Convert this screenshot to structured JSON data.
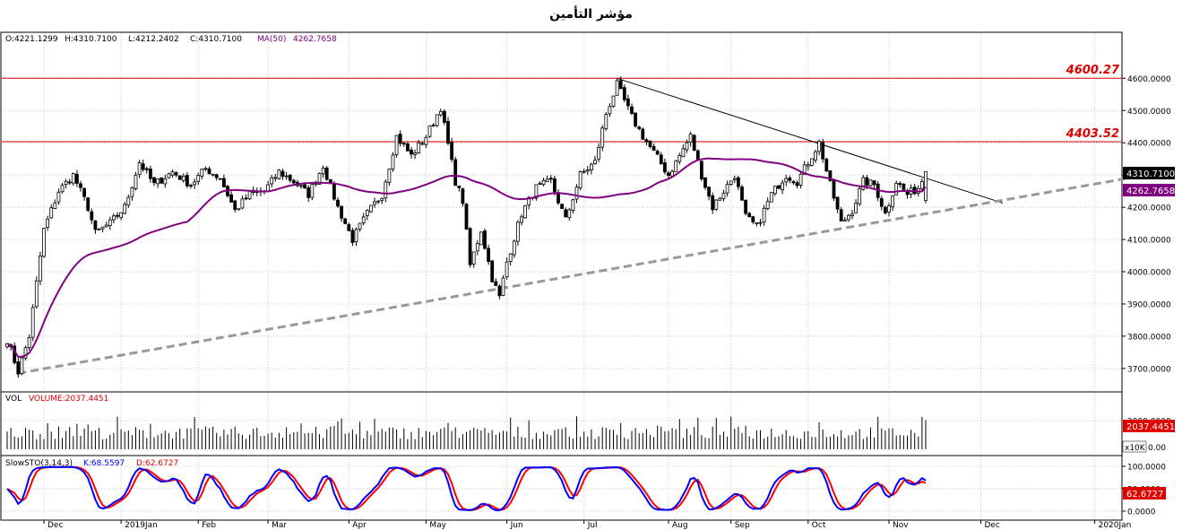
{
  "title": "مؤشر التأمين",
  "ohlc_header": {
    "open": "O:4221.1299",
    "high": "H:4310.7100",
    "low": "L:4212.2402",
    "close": "C:4310.7100",
    "ma_label": "MA(50)",
    "ma_value": "4262.7658"
  },
  "volume_header": {
    "label": "VOL",
    "value": "VOLUME:2037.4451"
  },
  "stoch_header": {
    "label": "SlowSTO(3,14,3)",
    "k": "K:68.5597",
    "d": "D:62.6727"
  },
  "colors": {
    "up": "#000000",
    "down": "#000000",
    "ma": "#800080",
    "resistance": "#e00000",
    "trend_down": "#000000",
    "trend_up": "#999999",
    "stoch_k": "#0000ff",
    "stoch_d": "#ff0000",
    "grid": "#c8c8c8"
  },
  "chart_data": {
    "type": "candlestick",
    "price_axis": {
      "ticks": [
        3700,
        3800,
        3900,
        4000,
        4100,
        4200,
        4300,
        4400,
        4500,
        4600
      ],
      "tick_labels": [
        "3700.0000",
        "3800.0000",
        "3900.0000",
        "4000.0000",
        "4100.0000",
        "4200.0000",
        "4300.0000",
        "4400.0000",
        "4500.0000",
        "4600.0000"
      ],
      "range": [
        3630,
        4740
      ]
    },
    "volume_axis": {
      "ticks": [
        2000
      ],
      "tick_labels": [
        "2000.0000"
      ],
      "unit_label": "x10K",
      "zero_label": "0.00",
      "range": [
        0,
        3000
      ]
    },
    "stoch_axis": {
      "ticks": [
        0,
        50,
        100
      ],
      "tick_labels": [
        "0.0000",
        "50.0000",
        "100.0000"
      ],
      "range": [
        -10,
        110
      ]
    },
    "time_axis": {
      "labels": [
        {
          "label": "Dec",
          "index": 10
        },
        {
          "label": "2019Jan",
          "index": 31
        },
        {
          "label": "Feb",
          "index": 52
        },
        {
          "label": "Mar",
          "index": 71
        },
        {
          "label": "Apr",
          "index": 93
        },
        {
          "label": "May",
          "index": 114
        },
        {
          "label": "Jun",
          "index": 136
        },
        {
          "label": "Jul",
          "index": 157
        },
        {
          "label": "Aug",
          "index": 180
        },
        {
          "label": "Sep",
          "index": 197
        },
        {
          "label": "Oct",
          "index": 218
        },
        {
          "label": "Nov",
          "index": 240
        },
        {
          "label": "Dec",
          "index": 265
        },
        {
          "label": "2020Jan",
          "index": 296
        }
      ],
      "total_slots": 305
    },
    "resistance_levels": [
      {
        "value": 4600.27,
        "label": "4600.27"
      },
      {
        "value": 4403.52,
        "label": "4403.52"
      }
    ],
    "trendlines": [
      {
        "name": "descending",
        "from": {
          "index": 166,
          "value": 4600
        },
        "to": {
          "index": 271,
          "value": 4213
        }
      },
      {
        "name": "ascending",
        "from": {
          "index": 3,
          "value": 3685
        },
        "to": {
          "index": 305,
          "value": 4290
        }
      }
    ],
    "price_anchors": [
      [
        0,
        3790
      ],
      [
        3,
        3690
      ],
      [
        6,
        3800
      ],
      [
        10,
        4130
      ],
      [
        14,
        4250
      ],
      [
        18,
        4300
      ],
      [
        22,
        4200
      ],
      [
        24,
        4120
      ],
      [
        28,
        4150
      ],
      [
        32,
        4200
      ],
      [
        36,
        4340
      ],
      [
        40,
        4270
      ],
      [
        45,
        4310
      ],
      [
        50,
        4270
      ],
      [
        54,
        4320
      ],
      [
        58,
        4290
      ],
      [
        62,
        4190
      ],
      [
        66,
        4240
      ],
      [
        70,
        4250
      ],
      [
        74,
        4310
      ],
      [
        78,
        4280
      ],
      [
        82,
        4240
      ],
      [
        86,
        4330
      ],
      [
        90,
        4200
      ],
      [
        94,
        4100
      ],
      [
        98,
        4180
      ],
      [
        102,
        4240
      ],
      [
        106,
        4420
      ],
      [
        110,
        4360
      ],
      [
        114,
        4420
      ],
      [
        118,
        4510
      ],
      [
        122,
        4280
      ],
      [
        124,
        4220
      ],
      [
        126,
        4020
      ],
      [
        129,
        4130
      ],
      [
        132,
        3980
      ],
      [
        134,
        3920
      ],
      [
        136,
        4030
      ],
      [
        140,
        4180
      ],
      [
        144,
        4260
      ],
      [
        148,
        4280
      ],
      [
        152,
        4160
      ],
      [
        156,
        4300
      ],
      [
        160,
        4340
      ],
      [
        163,
        4490
      ],
      [
        166,
        4580
      ],
      [
        170,
        4480
      ],
      [
        173,
        4420
      ],
      [
        176,
        4370
      ],
      [
        180,
        4300
      ],
      [
        183,
        4360
      ],
      [
        186,
        4420
      ],
      [
        189,
        4300
      ],
      [
        192,
        4200
      ],
      [
        195,
        4250
      ],
      [
        198,
        4300
      ],
      [
        201,
        4170
      ],
      [
        204,
        4140
      ],
      [
        208,
        4240
      ],
      [
        212,
        4300
      ],
      [
        215,
        4280
      ],
      [
        218,
        4340
      ],
      [
        221,
        4400
      ],
      [
        224,
        4270
      ],
      [
        227,
        4150
      ],
      [
        230,
        4190
      ],
      [
        233,
        4280
      ],
      [
        236,
        4270
      ],
      [
        239,
        4180
      ],
      [
        242,
        4280
      ],
      [
        245,
        4240
      ],
      [
        248,
        4260
      ],
      [
        250,
        4310
      ]
    ],
    "last_candle": {
      "open": 4221.1299,
      "high": 4310.71,
      "low": 4212.2402,
      "close": 4310.71
    },
    "ma50_last": 4262.7658,
    "last_price_label": "4310.7100",
    "last_ma_label": "4262.7658",
    "volume_last": 2037.4451,
    "volume_last_label": "2037.4451",
    "stoch_last": {
      "k": 68.5597,
      "d": 62.6727
    },
    "stoch_last_label": "62.6727"
  }
}
